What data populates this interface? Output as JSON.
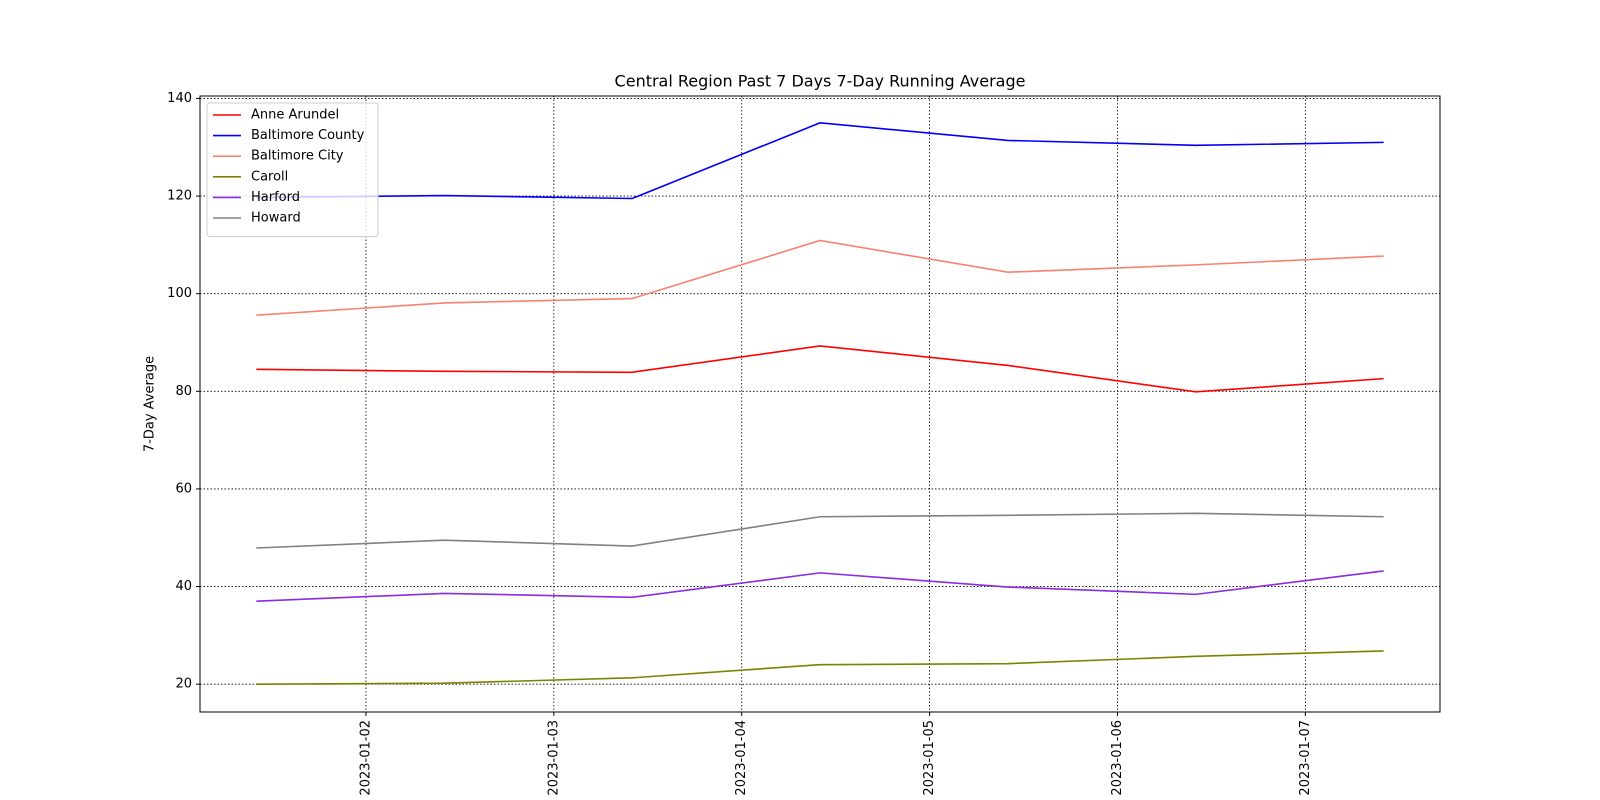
{
  "chart_data": {
    "type": "line",
    "title": "Central Region Past 7 Days 7-Day Running Average",
    "y_label": "7-Day Average",
    "x": [
      "2023-01-01T10:00",
      "2023-01-02T10:00",
      "2023-01-03T10:00",
      "2023-01-04T10:00",
      "2023-01-05T10:00",
      "2023-01-06T10:00",
      "2023-01-07T10:00"
    ],
    "series": [
      {
        "name": "Anne Arundel",
        "color": "#ff0000",
        "values": [
          84.5,
          84.1,
          83.9,
          89.3,
          85.3,
          79.9,
          82.6
        ]
      },
      {
        "name": "Baltimore County",
        "color": "#0000ff",
        "values": [
          119.7,
          120.1,
          119.5,
          135.0,
          131.4,
          130.4,
          131.0
        ]
      },
      {
        "name": "Baltimore City",
        "color": "#fa8072",
        "values": [
          95.6,
          98.1,
          99.0,
          110.9,
          104.4,
          105.9,
          107.7
        ]
      },
      {
        "name": "Caroll",
        "color": "#808000",
        "values": [
          20.0,
          20.2,
          21.3,
          24.0,
          24.2,
          25.7,
          26.8
        ]
      },
      {
        "name": "Harford",
        "color": "#8a2be2",
        "values": [
          37.0,
          38.6,
          37.8,
          42.8,
          39.9,
          38.4,
          43.2
        ]
      },
      {
        "name": "Howard",
        "color": "#808080",
        "values": [
          47.9,
          49.5,
          48.3,
          54.3,
          54.6,
          55.0,
          54.3
        ]
      }
    ],
    "xlim": [
      "2023-01-01T02:48",
      "2023-01-07T17:12"
    ],
    "xticks": [
      "2023-01-02",
      "2023-01-03",
      "2023-01-04",
      "2023-01-05",
      "2023-01-06",
      "2023-01-07"
    ],
    "ylim": [
      14.3,
      140.5
    ],
    "yticks": [
      20,
      40,
      60,
      80,
      100,
      120,
      140
    ],
    "grid": true,
    "legend": "upper left"
  }
}
